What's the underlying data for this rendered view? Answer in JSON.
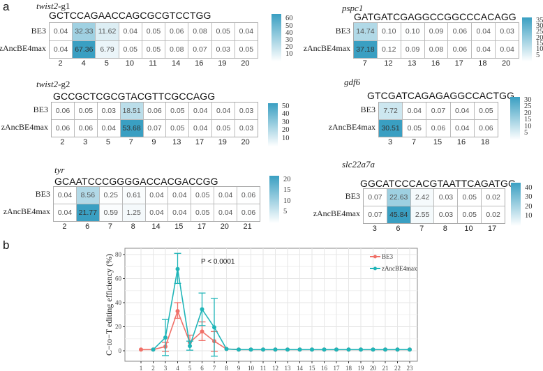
{
  "panel_a_label": "a",
  "panel_b_label": "b",
  "heatmaps": [
    {
      "gene": "twist2",
      "suffix": "-g1",
      "sequence": "GCTCCAGAACCAGCGCGTCCTGG",
      "positions": [
        "2",
        "4",
        "5",
        "10",
        "11",
        "14",
        "16",
        "19",
        "20"
      ],
      "rows": [
        {
          "label": "BE3",
          "values": [
            0.04,
            32.33,
            11.62,
            0.04,
            0.05,
            0.06,
            0.08,
            0.05,
            0.04
          ]
        },
        {
          "label": "zAncBE4max",
          "values": [
            0.04,
            67.36,
            6.79,
            0.05,
            0.05,
            0.08,
            0.07,
            0.03,
            0.05
          ]
        }
      ],
      "colorbar_ticks": [
        60,
        50,
        40,
        30,
        20,
        10
      ],
      "scale_max": 67.36
    },
    {
      "gene": "twist2",
      "suffix": "-g2",
      "sequence": "GCCGCTCGCGTACGTTCGCCAGG",
      "positions": [
        "2",
        "3",
        "5",
        "7",
        "9",
        "13",
        "17",
        "19",
        "20"
      ],
      "rows": [
        {
          "label": "BE3",
          "values": [
            0.06,
            0.05,
            0.03,
            18.51,
            0.06,
            0.05,
            0.04,
            0.04,
            0.03
          ]
        },
        {
          "label": "zAncBE4max",
          "values": [
            0.06,
            0.06,
            0.04,
            53.68,
            0.07,
            0.05,
            0.04,
            0.05,
            0.03
          ]
        }
      ],
      "colorbar_ticks": [
        50,
        40,
        30,
        20,
        10
      ],
      "scale_max": 53.68
    },
    {
      "gene": "tyr",
      "suffix": "",
      "sequence": "GCAATCCCGGGGACCACGACCGG",
      "positions": [
        "2",
        "6",
        "7",
        "8",
        "14",
        "15",
        "17",
        "20",
        "21"
      ],
      "rows": [
        {
          "label": "BE3",
          "values": [
            0.04,
            8.56,
            0.25,
            0.61,
            0.04,
            0.04,
            0.05,
            0.04,
            0.06
          ]
        },
        {
          "label": "zAncBE4max",
          "values": [
            0.04,
            21.77,
            0.59,
            1.25,
            0.04,
            0.04,
            0.05,
            0.04,
            0.06
          ]
        }
      ],
      "colorbar_ticks": [
        20,
        15,
        10,
        5
      ],
      "scale_max": 21.77
    },
    {
      "gene": "pspc1",
      "suffix": "",
      "sequence": "GATGATCGAGGCCGGCCCACAGG",
      "positions": [
        "7",
        "12",
        "13",
        "16",
        "17",
        "18",
        "20"
      ],
      "rows": [
        {
          "label": "BE3",
          "values": [
            14.74,
            0.1,
            0.1,
            0.09,
            0.06,
            0.04,
            0.03
          ]
        },
        {
          "label": "zAncBE4max",
          "values": [
            37.18,
            0.12,
            0.09,
            0.08,
            0.06,
            0.04,
            0.04
          ]
        }
      ],
      "colorbar_ticks": [
        35,
        30,
        25,
        20,
        15,
        10,
        5
      ],
      "scale_max": 37.18
    },
    {
      "gene": "gdf6",
      "suffix": "",
      "sequence": "GTCGATCAGAGAGGCCACTGG",
      "positions": [
        "3",
        "7",
        "15",
        "16",
        "18"
      ],
      "rows": [
        {
          "label": "BE3",
          "values": [
            7.72,
            0.04,
            0.07,
            0.04,
            0.05
          ]
        },
        {
          "label": "zAncBE4max",
          "values": [
            30.51,
            0.05,
            0.06,
            0.04,
            0.06
          ]
        }
      ],
      "colorbar_ticks": [
        30,
        25,
        20,
        15,
        10,
        5
      ],
      "scale_max": 30.51
    },
    {
      "gene": "slc22a7a",
      "suffix": "",
      "sequence": "GGCATCCCACGTAATTCAGATGG",
      "positions": [
        "3",
        "6",
        "7",
        "8",
        "10",
        "17"
      ],
      "rows": [
        {
          "label": "BE3",
          "values": [
            0.07,
            22.63,
            2.42,
            0.03,
            0.05,
            0.02
          ]
        },
        {
          "label": "zAncBE4max",
          "values": [
            0.07,
            45.84,
            2.55,
            0.03,
            0.05,
            0.02
          ]
        }
      ],
      "colorbar_ticks": [
        40,
        30,
        20,
        10
      ],
      "scale_max": 45.84
    }
  ],
  "colors": {
    "heat_high": "#3a9fc2",
    "heat_low": "#ffffff",
    "be3": "#f07068",
    "zancbe4max": "#20b5b8"
  },
  "chart_data": {
    "type": "line",
    "ylabel": "C−to−T editing efficiency (%)",
    "xlabel": "",
    "annotation": "P < 0.0001",
    "x": [
      1,
      2,
      3,
      4,
      5,
      6,
      7,
      8,
      9,
      10,
      11,
      12,
      13,
      14,
      15,
      16,
      17,
      18,
      19,
      20,
      21,
      22,
      23
    ],
    "ylim": [
      -9,
      85
    ],
    "yticks": [
      0,
      20,
      40,
      60,
      80
    ],
    "grid": true,
    "legend": "top-right",
    "series": [
      {
        "name": "BE3",
        "x": [
          1,
          2,
          3,
          4,
          5,
          6,
          7,
          8,
          9,
          10,
          11,
          12,
          13,
          14,
          15,
          16,
          17,
          18,
          19,
          20,
          21,
          22,
          23
        ],
        "values": [
          1,
          1,
          3.5,
          33,
          7,
          16,
          8,
          1.5,
          1,
          1,
          1,
          1,
          1,
          1,
          1,
          1,
          1,
          1,
          1,
          1,
          1,
          1,
          1
        ],
        "err_low": [
          null,
          null,
          -0.5,
          27,
          null,
          8.5,
          -0.5,
          null,
          null,
          null,
          null,
          null,
          null,
          null,
          null,
          null,
          null,
          null,
          null,
          null,
          null,
          null,
          null
        ],
        "err_high": [
          null,
          null,
          7,
          40,
          13,
          24,
          16,
          null,
          null,
          null,
          null,
          null,
          null,
          null,
          null,
          null,
          null,
          null,
          null,
          null,
          null,
          null,
          null
        ]
      },
      {
        "name": "zAncBE4max",
        "x": [
          2,
          3,
          4,
          5,
          6,
          7,
          8,
          9,
          10,
          11,
          12,
          13,
          14,
          15,
          16,
          17,
          18,
          19,
          20,
          21,
          22,
          23
        ],
        "values": [
          1,
          11,
          68,
          4,
          34.5,
          19.5,
          1.5,
          1,
          1,
          1,
          1,
          1,
          1,
          1,
          1,
          1,
          1,
          1,
          1,
          1,
          1,
          1
        ],
        "err_low": [
          null,
          -4,
          56,
          0.5,
          21,
          -4.5,
          null,
          null,
          null,
          null,
          null,
          null,
          null,
          null,
          null,
          null,
          null,
          null,
          null,
          null,
          null,
          null
        ],
        "err_high": [
          null,
          26,
          81,
          8,
          48,
          43.5,
          null,
          null,
          null,
          null,
          null,
          null,
          null,
          null,
          null,
          null,
          null,
          null,
          null,
          null,
          null,
          null
        ]
      }
    ]
  }
}
